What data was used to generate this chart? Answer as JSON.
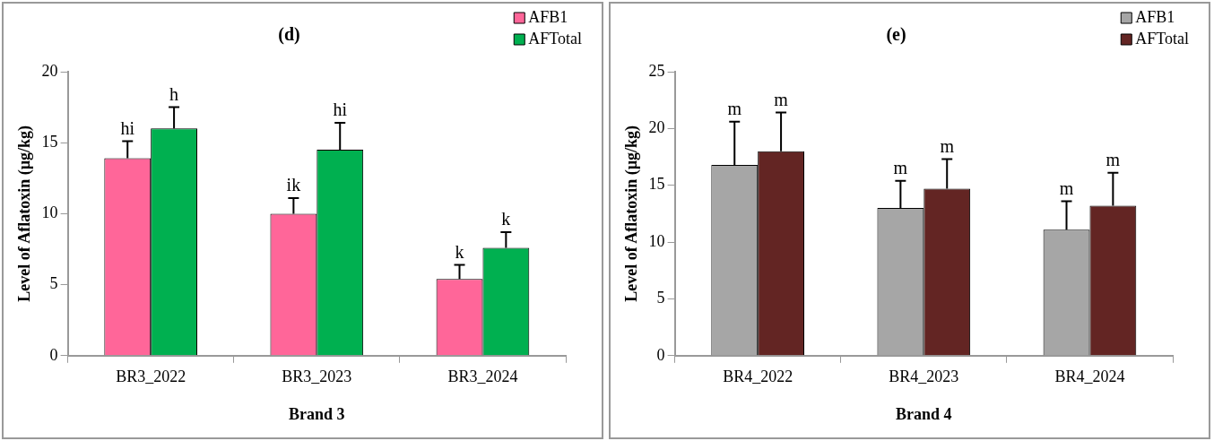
{
  "chart_data": [
    {
      "type": "bar",
      "title": "(d)",
      "xlabel": "Brand 3",
      "ylabel": "Level of Aflatoxin (µg/kg)",
      "categories": [
        "BR3_2022",
        "BR3_2023",
        "BR3_2024"
      ],
      "series": [
        {
          "name": "AFB1",
          "color": "#ff6699",
          "values": [
            13.9,
            10.0,
            5.4
          ],
          "errors": [
            [
              13.9,
              15.1
            ],
            [
              10.0,
              11.1
            ],
            [
              5.4,
              6.4
            ]
          ],
          "value_labels": [
            "hi",
            "ik",
            "k"
          ]
        },
        {
          "name": "AFTotal",
          "color": "#00b050",
          "values": [
            16.0,
            14.5,
            7.6
          ],
          "errors": [
            [
              16.0,
              17.5
            ],
            [
              14.5,
              16.4
            ],
            [
              7.6,
              8.7
            ]
          ],
          "value_labels": [
            "h",
            "hi",
            "k"
          ]
        }
      ],
      "ylim": [
        0,
        20
      ],
      "yticks": [
        0,
        5,
        10,
        15,
        20
      ],
      "grid": false,
      "legend": "top right"
    },
    {
      "type": "bar",
      "title": "(e)",
      "xlabel": "Brand 4",
      "ylabel": "Level of Aflatoxin (µg/kg)",
      "categories": [
        "BR4_2022",
        "BR4_2023",
        "BR4_2024"
      ],
      "series": [
        {
          "name": "AFB1",
          "color": "#a6a6a6",
          "values": [
            16.8,
            13.0,
            11.1
          ],
          "errors": [
            [
              16.8,
              20.6
            ],
            [
              13.0,
              15.4
            ],
            [
              11.1,
              13.6
            ]
          ],
          "value_labels": [
            "m",
            "m",
            "m"
          ]
        },
        {
          "name": "AFTotal",
          "color": "#632523",
          "values": [
            18.0,
            14.7,
            13.2
          ],
          "errors": [
            [
              18.0,
              21.4
            ],
            [
              14.7,
              17.3
            ],
            [
              13.2,
              16.1
            ]
          ],
          "value_labels": [
            "m",
            "m",
            "m"
          ]
        }
      ],
      "ylim": [
        0,
        25
      ],
      "yticks": [
        0,
        5,
        10,
        15,
        20,
        25
      ],
      "grid": false,
      "legend": "top right"
    }
  ]
}
